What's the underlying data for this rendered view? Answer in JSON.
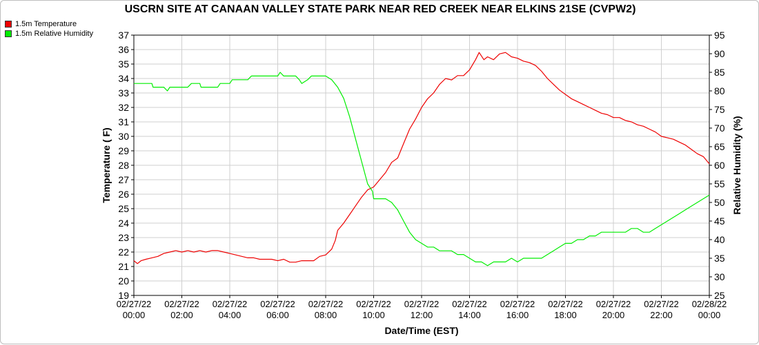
{
  "title": "USCRN SITE AT CANAAN VALLEY STATE PARK NEAR RED CREEK NEAR ELKINS 21SE (CVPW2)",
  "legend": [
    {
      "label": "1.5m Temperature",
      "color": "#ee0000"
    },
    {
      "label": "1.5m Relative Humidity",
      "color": "#00ee00"
    }
  ],
  "chart_data": {
    "type": "line",
    "title": "USCRN SITE AT CANAAN VALLEY STATE PARK NEAR RED CREEK NEAR ELKINS 21SE (CVPW2)",
    "xlabel": "Date/Time (EST)",
    "ylabel": "Temperature ( F)",
    "y2label": "Relative Humidity (%)",
    "x_unit": "hours",
    "xlim": [
      0,
      24
    ],
    "ylim": [
      19,
      37
    ],
    "y2lim": [
      25,
      95
    ],
    "grid": true,
    "legend_position": "top-left",
    "x_ticks": [
      {
        "date": "02/27/22",
        "time": "00:00"
      },
      {
        "date": "02/27/22",
        "time": "02:00"
      },
      {
        "date": "02/27/22",
        "time": "04:00"
      },
      {
        "date": "02/27/22",
        "time": "06:00"
      },
      {
        "date": "02/27/22",
        "time": "08:00"
      },
      {
        "date": "02/27/22",
        "time": "10:00"
      },
      {
        "date": "02/27/22",
        "time": "12:00"
      },
      {
        "date": "02/27/22",
        "time": "14:00"
      },
      {
        "date": "02/27/22",
        "time": "16:00"
      },
      {
        "date": "02/27/22",
        "time": "18:00"
      },
      {
        "date": "02/27/22",
        "time": "20:00"
      },
      {
        "date": "02/27/22",
        "time": "22:00"
      },
      {
        "date": "02/28/22",
        "time": "00:00"
      }
    ],
    "y_ticks": [
      19,
      20,
      21,
      22,
      23,
      24,
      25,
      26,
      27,
      28,
      29,
      30,
      31,
      32,
      33,
      34,
      35,
      36,
      37
    ],
    "y2_ticks": [
      25,
      30,
      35,
      40,
      45,
      50,
      55,
      60,
      65,
      70,
      75,
      80,
      85,
      90,
      95
    ],
    "series": [
      {
        "name": "1.5m Temperature",
        "axis": "left",
        "color": "#ee0000",
        "points": [
          [
            0.0,
            21.4
          ],
          [
            0.15,
            21.2
          ],
          [
            0.3,
            21.4
          ],
          [
            0.5,
            21.5
          ],
          [
            0.75,
            21.6
          ],
          [
            1.0,
            21.7
          ],
          [
            1.25,
            21.9
          ],
          [
            1.5,
            22.0
          ],
          [
            1.75,
            22.1
          ],
          [
            2.0,
            22.0
          ],
          [
            2.25,
            22.1
          ],
          [
            2.5,
            22.0
          ],
          [
            2.75,
            22.1
          ],
          [
            3.0,
            22.0
          ],
          [
            3.25,
            22.1
          ],
          [
            3.5,
            22.1
          ],
          [
            3.75,
            22.0
          ],
          [
            4.0,
            21.9
          ],
          [
            4.25,
            21.8
          ],
          [
            4.5,
            21.7
          ],
          [
            4.75,
            21.6
          ],
          [
            5.0,
            21.6
          ],
          [
            5.25,
            21.5
          ],
          [
            5.5,
            21.5
          ],
          [
            5.75,
            21.5
          ],
          [
            6.0,
            21.4
          ],
          [
            6.25,
            21.5
          ],
          [
            6.5,
            21.3
          ],
          [
            6.75,
            21.3
          ],
          [
            7.0,
            21.4
          ],
          [
            7.25,
            21.4
          ],
          [
            7.5,
            21.4
          ],
          [
            7.75,
            21.7
          ],
          [
            8.0,
            21.8
          ],
          [
            8.25,
            22.2
          ],
          [
            8.4,
            22.8
          ],
          [
            8.5,
            23.5
          ],
          [
            8.75,
            24.0
          ],
          [
            9.0,
            24.6
          ],
          [
            9.25,
            25.2
          ],
          [
            9.5,
            25.8
          ],
          [
            9.75,
            26.3
          ],
          [
            10.0,
            26.5
          ],
          [
            10.25,
            27.0
          ],
          [
            10.5,
            27.5
          ],
          [
            10.75,
            28.2
          ],
          [
            11.0,
            28.5
          ],
          [
            11.25,
            29.5
          ],
          [
            11.5,
            30.5
          ],
          [
            11.75,
            31.2
          ],
          [
            12.0,
            32.0
          ],
          [
            12.25,
            32.6
          ],
          [
            12.5,
            33.0
          ],
          [
            12.75,
            33.6
          ],
          [
            13.0,
            34.0
          ],
          [
            13.25,
            33.9
          ],
          [
            13.5,
            34.2
          ],
          [
            13.75,
            34.2
          ],
          [
            14.0,
            34.6
          ],
          [
            14.25,
            35.3
          ],
          [
            14.4,
            35.8
          ],
          [
            14.6,
            35.3
          ],
          [
            14.75,
            35.5
          ],
          [
            15.0,
            35.3
          ],
          [
            15.25,
            35.7
          ],
          [
            15.5,
            35.8
          ],
          [
            15.75,
            35.5
          ],
          [
            16.0,
            35.4
          ],
          [
            16.25,
            35.2
          ],
          [
            16.5,
            35.1
          ],
          [
            16.75,
            34.9
          ],
          [
            17.0,
            34.5
          ],
          [
            17.25,
            34.0
          ],
          [
            17.5,
            33.6
          ],
          [
            17.75,
            33.2
          ],
          [
            18.0,
            32.9
          ],
          [
            18.25,
            32.6
          ],
          [
            18.5,
            32.4
          ],
          [
            18.75,
            32.2
          ],
          [
            19.0,
            32.0
          ],
          [
            19.25,
            31.8
          ],
          [
            19.5,
            31.6
          ],
          [
            19.75,
            31.5
          ],
          [
            20.0,
            31.3
          ],
          [
            20.25,
            31.3
          ],
          [
            20.5,
            31.1
          ],
          [
            20.75,
            31.0
          ],
          [
            21.0,
            30.8
          ],
          [
            21.25,
            30.7
          ],
          [
            21.5,
            30.5
          ],
          [
            21.75,
            30.3
          ],
          [
            22.0,
            30.0
          ],
          [
            22.25,
            29.9
          ],
          [
            22.5,
            29.8
          ],
          [
            22.75,
            29.6
          ],
          [
            23.0,
            29.4
          ],
          [
            23.25,
            29.1
          ],
          [
            23.5,
            28.8
          ],
          [
            23.75,
            28.6
          ],
          [
            24.0,
            28.1
          ]
        ]
      },
      {
        "name": "1.5m Relative Humidity",
        "axis": "right",
        "color": "#00ee00",
        "points": [
          [
            0.0,
            82
          ],
          [
            0.5,
            82
          ],
          [
            0.75,
            82
          ],
          [
            0.8,
            81
          ],
          [
            1.25,
            81
          ],
          [
            1.4,
            80
          ],
          [
            1.5,
            81
          ],
          [
            2.0,
            81
          ],
          [
            2.25,
            81
          ],
          [
            2.4,
            82
          ],
          [
            2.75,
            82
          ],
          [
            2.8,
            81
          ],
          [
            3.1,
            81
          ],
          [
            3.5,
            81
          ],
          [
            3.6,
            82
          ],
          [
            4.0,
            82
          ],
          [
            4.1,
            83
          ],
          [
            4.5,
            83
          ],
          [
            4.75,
            83
          ],
          [
            4.9,
            84
          ],
          [
            5.5,
            84
          ],
          [
            6.0,
            84
          ],
          [
            6.1,
            85
          ],
          [
            6.25,
            84
          ],
          [
            6.75,
            84
          ],
          [
            6.9,
            83
          ],
          [
            7.0,
            82
          ],
          [
            7.25,
            83
          ],
          [
            7.4,
            84
          ],
          [
            7.75,
            84
          ],
          [
            8.0,
            84
          ],
          [
            8.25,
            83
          ],
          [
            8.5,
            81
          ],
          [
            8.75,
            78
          ],
          [
            9.0,
            73
          ],
          [
            9.25,
            67
          ],
          [
            9.5,
            61
          ],
          [
            9.75,
            55
          ],
          [
            9.95,
            53
          ],
          [
            10.0,
            51
          ],
          [
            10.5,
            51
          ],
          [
            10.75,
            50
          ],
          [
            11.0,
            48
          ],
          [
            11.25,
            45
          ],
          [
            11.5,
            42
          ],
          [
            11.75,
            40
          ],
          [
            12.0,
            39
          ],
          [
            12.25,
            38
          ],
          [
            12.5,
            38
          ],
          [
            12.75,
            37
          ],
          [
            13.0,
            37
          ],
          [
            13.25,
            37
          ],
          [
            13.5,
            36
          ],
          [
            13.75,
            36
          ],
          [
            14.0,
            35
          ],
          [
            14.25,
            34
          ],
          [
            14.5,
            34
          ],
          [
            14.75,
            33
          ],
          [
            15.0,
            34
          ],
          [
            15.25,
            34
          ],
          [
            15.5,
            34
          ],
          [
            15.75,
            35
          ],
          [
            16.0,
            34
          ],
          [
            16.25,
            35
          ],
          [
            16.5,
            35
          ],
          [
            16.75,
            35
          ],
          [
            17.0,
            35
          ],
          [
            17.25,
            36
          ],
          [
            17.5,
            37
          ],
          [
            17.75,
            38
          ],
          [
            18.0,
            39
          ],
          [
            18.25,
            39
          ],
          [
            18.5,
            40
          ],
          [
            18.75,
            40
          ],
          [
            19.0,
            41
          ],
          [
            19.25,
            41
          ],
          [
            19.5,
            42
          ],
          [
            19.75,
            42
          ],
          [
            20.0,
            42
          ],
          [
            20.25,
            42
          ],
          [
            20.5,
            42
          ],
          [
            20.75,
            43
          ],
          [
            21.0,
            43
          ],
          [
            21.25,
            42
          ],
          [
            21.5,
            42
          ],
          [
            21.75,
            43
          ],
          [
            22.0,
            44
          ],
          [
            22.25,
            45
          ],
          [
            22.5,
            46
          ],
          [
            22.75,
            47
          ],
          [
            23.0,
            48
          ],
          [
            23.25,
            49
          ],
          [
            23.5,
            50
          ],
          [
            23.75,
            51
          ],
          [
            24.0,
            52
          ]
        ]
      }
    ]
  }
}
